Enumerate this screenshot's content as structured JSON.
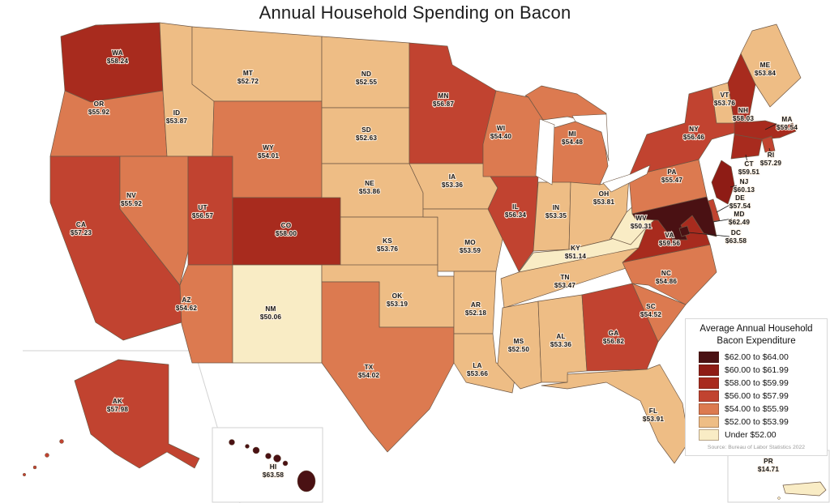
{
  "title": "Annual Household Spending on Bacon",
  "legend": {
    "title_line1": "Average Annual Household",
    "title_line2": "Bacon Expenditure",
    "items": [
      {
        "label": "$62.00 to $64.00",
        "min": 62,
        "color": "#4a1113"
      },
      {
        "label": "$60.00 to $61.99",
        "min": 60,
        "color": "#8e1c15"
      },
      {
        "label": "$58.00 to $59.99",
        "min": 58,
        "color": "#a82b1e"
      },
      {
        "label": "$56.00 to $57.99",
        "min": 56,
        "color": "#c14330"
      },
      {
        "label": "$54.00 to $55.99",
        "min": 54,
        "color": "#dc7a50"
      },
      {
        "label": "$52.00 to $53.99",
        "min": 52,
        "color": "#eebd85"
      },
      {
        "label": "Under $52.00",
        "min": null,
        "color": "#f9ecc5"
      }
    ],
    "source": "Source: Bureau of Labor Statistics 2022"
  },
  "chart_data": {
    "type": "heatmap",
    "subtype": "us-state-choropleth",
    "title": "Annual Household Spending on Bacon",
    "legend_title": "Average Annual Household Bacon Expenditure",
    "value_unit": "USD per household per year",
    "border_color": "#6e5744",
    "states": [
      {
        "abbr": "WA",
        "value": 58.24
      },
      {
        "abbr": "OR",
        "value": 55.92
      },
      {
        "abbr": "CA",
        "value": 57.23
      },
      {
        "abbr": "ID",
        "value": 53.87
      },
      {
        "abbr": "NV",
        "value": 55.92
      },
      {
        "abbr": "UT",
        "value": 56.57
      },
      {
        "abbr": "AZ",
        "value": 54.62
      },
      {
        "abbr": "MT",
        "value": 52.72
      },
      {
        "abbr": "WY",
        "value": 54.01
      },
      {
        "abbr": "CO",
        "value": 58.0
      },
      {
        "abbr": "NM",
        "value": 50.06
      },
      {
        "abbr": "ND",
        "value": 52.55
      },
      {
        "abbr": "SD",
        "value": 52.63
      },
      {
        "abbr": "NE",
        "value": 53.86
      },
      {
        "abbr": "KS",
        "value": 53.76
      },
      {
        "abbr": "OK",
        "value": 53.19
      },
      {
        "abbr": "TX",
        "value": 54.02
      },
      {
        "abbr": "MN",
        "value": 56.87
      },
      {
        "abbr": "IA",
        "value": 53.36
      },
      {
        "abbr": "MO",
        "value": 53.59
      },
      {
        "abbr": "AR",
        "value": 52.18
      },
      {
        "abbr": "LA",
        "value": 53.66
      },
      {
        "abbr": "WI",
        "value": 54.4
      },
      {
        "abbr": "IL",
        "value": 56.34
      },
      {
        "abbr": "MI",
        "value": 54.48
      },
      {
        "abbr": "IN",
        "value": 53.35
      },
      {
        "abbr": "OH",
        "value": 53.81
      },
      {
        "abbr": "KY",
        "value": 51.14
      },
      {
        "abbr": "TN",
        "value": 53.47
      },
      {
        "abbr": "MS",
        "value": 52.5
      },
      {
        "abbr": "AL",
        "value": 53.36
      },
      {
        "abbr": "GA",
        "value": 56.82
      },
      {
        "abbr": "FL",
        "value": 53.91
      },
      {
        "abbr": "SC",
        "value": 54.52
      },
      {
        "abbr": "NC",
        "value": 54.86
      },
      {
        "abbr": "VA",
        "value": 59.56
      },
      {
        "abbr": "WV",
        "value": 50.31
      },
      {
        "abbr": "PA",
        "value": 55.47
      },
      {
        "abbr": "NY",
        "value": 56.46
      },
      {
        "abbr": "VT",
        "value": 53.76
      },
      {
        "abbr": "NH",
        "value": 58.03
      },
      {
        "abbr": "ME",
        "value": 53.84
      },
      {
        "abbr": "MA",
        "value": 59.54
      },
      {
        "abbr": "RI",
        "value": 57.29
      },
      {
        "abbr": "CT",
        "value": 59.51
      },
      {
        "abbr": "NJ",
        "value": 60.13
      },
      {
        "abbr": "DE",
        "value": 57.54
      },
      {
        "abbr": "MD",
        "value": 62.49
      },
      {
        "abbr": "DC",
        "value": 63.58
      },
      {
        "abbr": "AK",
        "value": 57.98
      },
      {
        "abbr": "HI",
        "value": 63.58
      },
      {
        "abbr": "PR",
        "value": 14.71
      }
    ]
  }
}
